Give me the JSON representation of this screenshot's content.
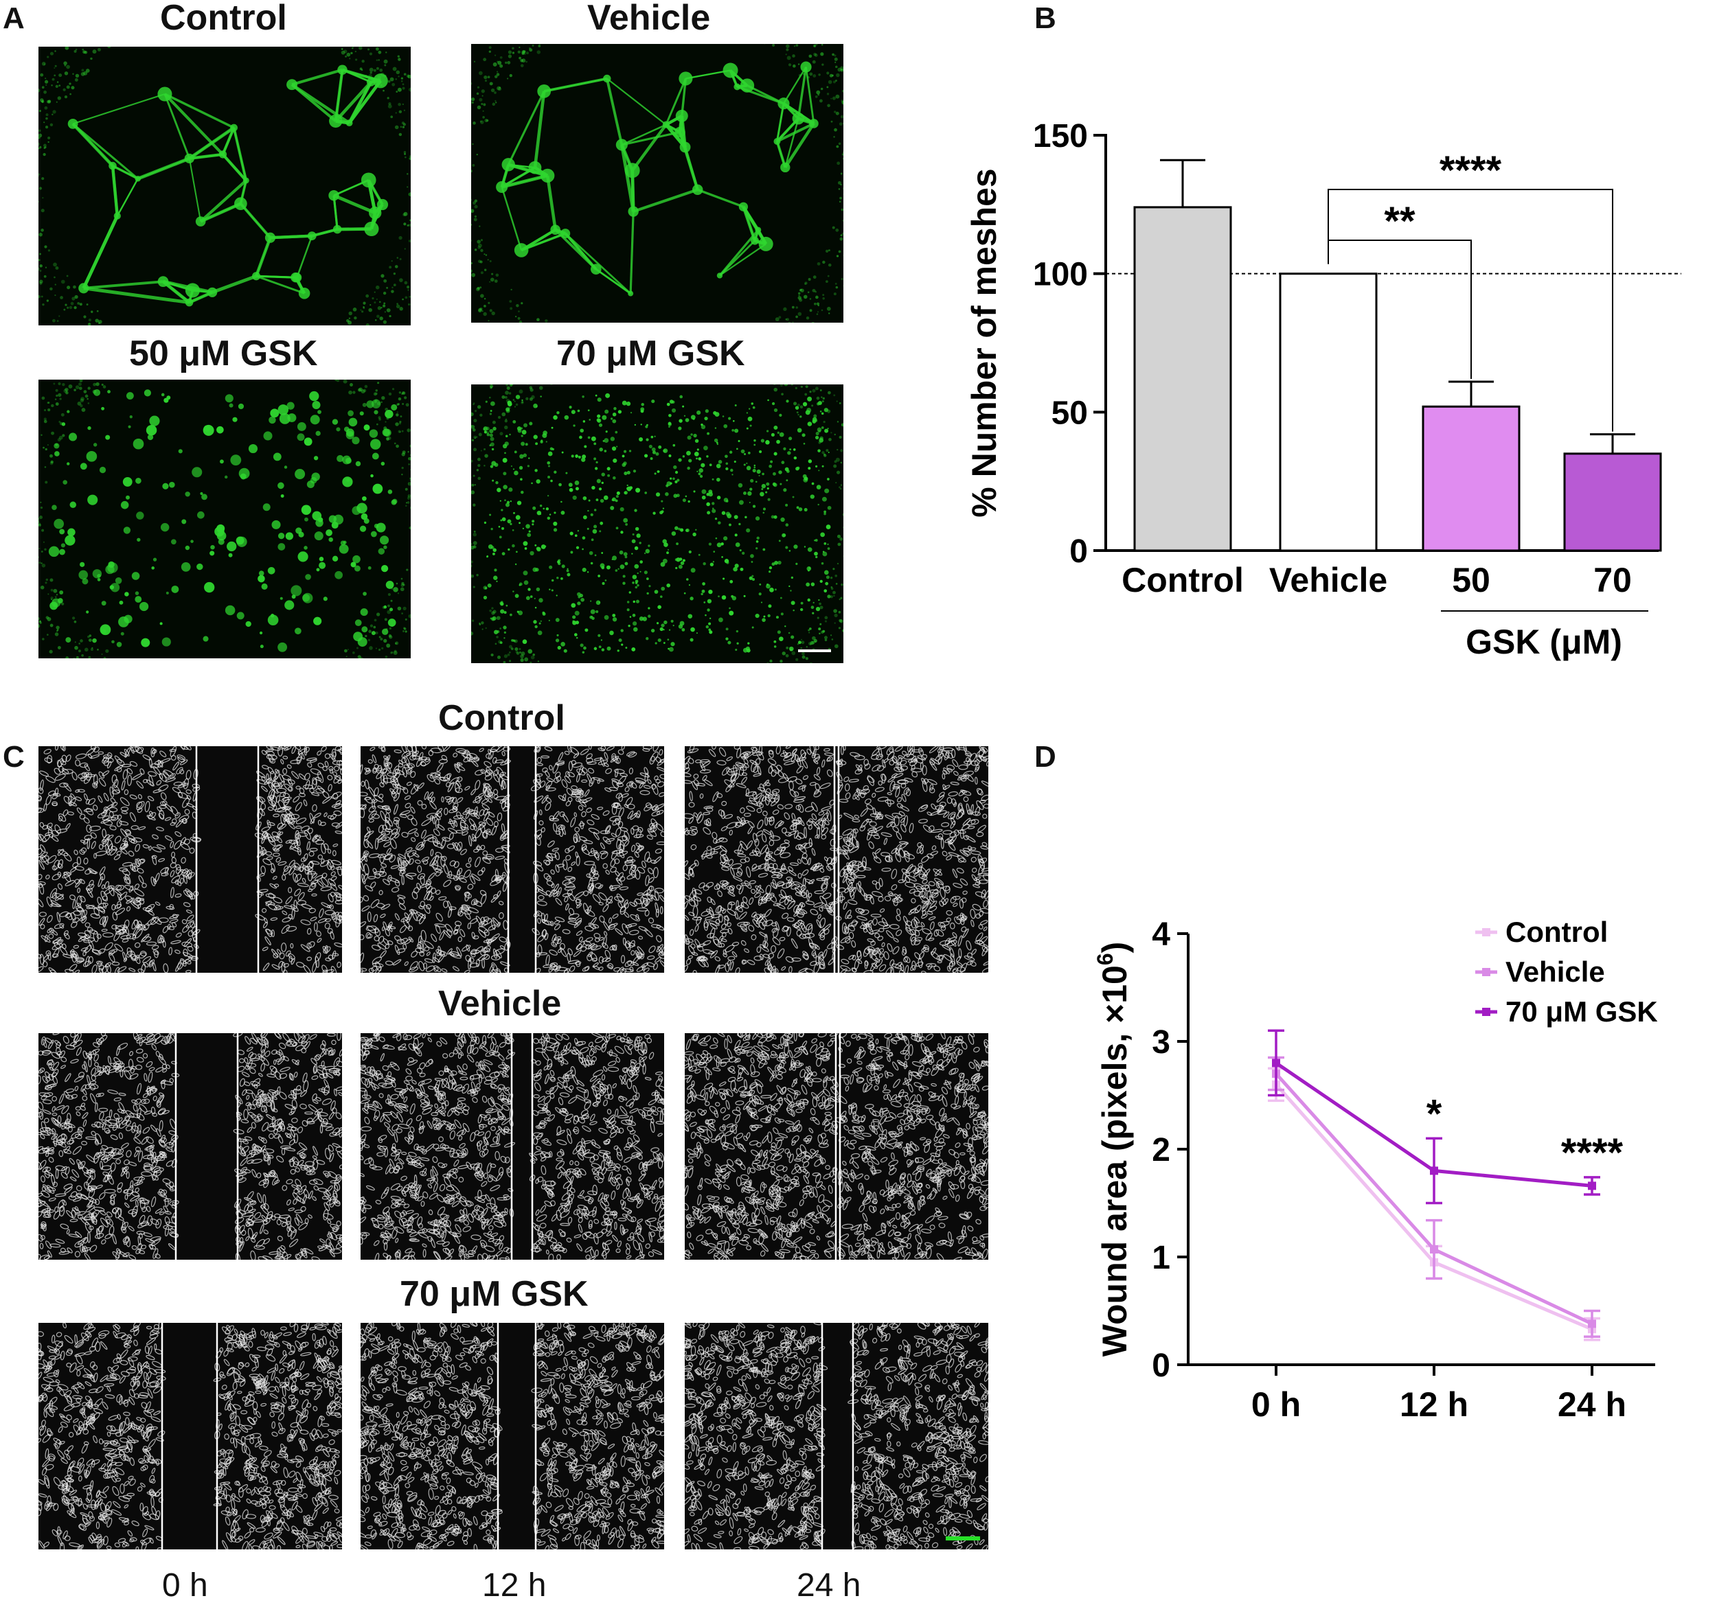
{
  "panel_letters": {
    "a": "A",
    "b": "B",
    "c": "C",
    "d": "D"
  },
  "panel_a": {
    "labels": [
      "Control",
      "Vehicle",
      "50 μM GSK",
      "70 μM GSK"
    ]
  },
  "panel_c": {
    "row_labels": [
      "Control",
      "Vehicle",
      "70 μM GSK"
    ],
    "time_labels": [
      "0 h",
      "12 h",
      "24 h"
    ]
  },
  "colors": {
    "fluorescence": "#2fd62f",
    "control_bar": "#d3d3d3",
    "vehicle_bar": "#ffffff",
    "gsk50_bar": "#e08cf0",
    "gsk70_bar": "#b85ad4",
    "line_control": "#efc0f0",
    "line_vehicle": "#d98ae6",
    "line_gsk": "#a21dc4",
    "scale_bar_green": "#28e028"
  },
  "chart_data": [
    {
      "type": "bar",
      "categories": [
        "Control",
        "Vehicle",
        "50",
        "70"
      ],
      "values": [
        124,
        100,
        52,
        35
      ],
      "errors": [
        17,
        0,
        9,
        7
      ],
      "bar_colors": [
        "#d3d3d3",
        "#ffffff",
        "#e08cf0",
        "#b85ad4"
      ],
      "ylabel": "% Number of meshes",
      "group_label": "GSK (μM)",
      "yticks": [
        0,
        50,
        100,
        150
      ],
      "ylim": [
        0,
        150
      ],
      "reference_line": 100,
      "significance": [
        {
          "from": "Vehicle",
          "to": "50",
          "label": "**"
        },
        {
          "from": "Vehicle",
          "to": "70",
          "label": "****"
        }
      ]
    },
    {
      "type": "line",
      "x": [
        "0 h",
        "12 h",
        "24 h"
      ],
      "series": [
        {
          "name": "Control",
          "values": [
            2.6,
            0.95,
            0.33
          ],
          "errors": [
            0.15,
            0.15,
            0.1
          ],
          "color": "#efc0f0"
        },
        {
          "name": "Vehicle",
          "values": [
            2.7,
            1.07,
            0.38
          ],
          "errors": [
            0.15,
            0.27,
            0.12
          ],
          "color": "#d98ae6"
        },
        {
          "name": "70 μM GSK",
          "values": [
            2.8,
            1.8,
            1.66
          ],
          "errors": [
            0.3,
            0.3,
            0.08
          ],
          "color": "#a21dc4"
        }
      ],
      "ylabel": "Wound area (pixels, ×10",
      "ylabel_sup": "6",
      "ylabel_close": ")",
      "yticks": [
        0,
        1,
        2,
        3,
        4
      ],
      "ylim": [
        0,
        4
      ],
      "significance": [
        "",
        "*",
        "****"
      ],
      "legend": "top-right"
    }
  ]
}
